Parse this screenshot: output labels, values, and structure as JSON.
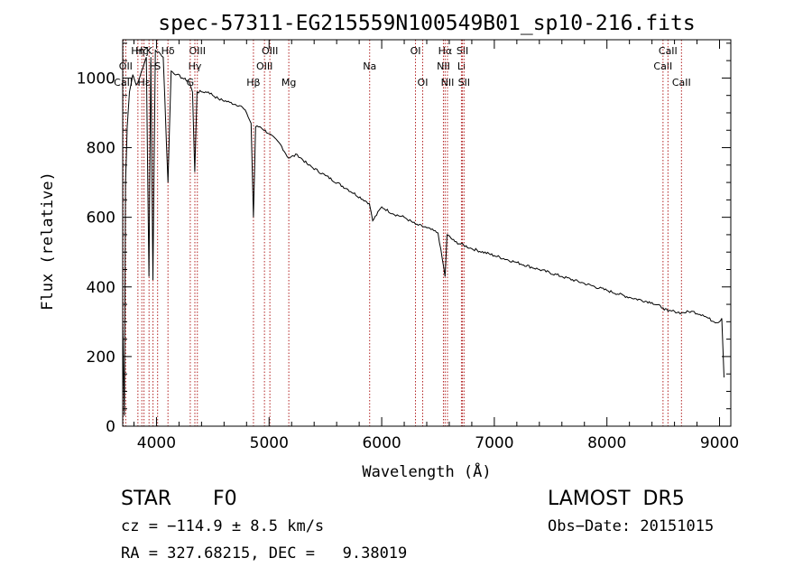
{
  "chart_data": {
    "type": "line",
    "title": "spec-57311-EG215559N100549B01_sp10-216.fits",
    "xlabel": "Wavelength (Å)",
    "ylabel": "Flux (relative)",
    "xlim": [
      3700,
      9100
    ],
    "ylim": [
      0,
      1110
    ],
    "xticks": [
      4000,
      5000,
      6000,
      7000,
      8000,
      9000
    ],
    "yticks": [
      0,
      200,
      400,
      600,
      800,
      1000
    ],
    "grid": false,
    "colors": {
      "spectrum": "#000000",
      "lines": "#b22222",
      "axes": "#000000"
    },
    "series": [
      {
        "x": [
          3700,
          3715,
          3725,
          3740,
          3760,
          3790,
          3820,
          3850,
          3880,
          3910,
          3933,
          3950,
          3968,
          3990,
          4020,
          4060,
          4102,
          4130,
          4180,
          4230,
          4290,
          4320,
          4340,
          4360,
          4400,
          4460,
          4550,
          4650,
          4750,
          4800,
          4840,
          4861,
          4880,
          4920,
          5000,
          5100,
          5172,
          5250,
          5350,
          5500,
          5700,
          5890,
          5920,
          6000,
          6100,
          6200,
          6300,
          6400,
          6500,
          6563,
          6580,
          6650,
          6800,
          7000,
          7200,
          7400,
          7600,
          7800,
          8000,
          8200,
          8400,
          8498,
          8542,
          8600,
          8662,
          8750,
          8850,
          8950,
          9000,
          9020,
          9040
        ],
        "values": [
          300,
          30,
          700,
          860,
          960,
          1010,
          980,
          1000,
          1030,
          1060,
          430,
          1060,
          420,
          1080,
          1075,
          1060,
          700,
          1020,
          1010,
          1000,
          990,
          960,
          730,
          960,
          960,
          960,
          940,
          930,
          920,
          900,
          870,
          600,
          860,
          860,
          840,
          810,
          770,
          780,
          750,
          720,
          680,
          640,
          590,
          630,
          610,
          600,
          580,
          570,
          555,
          430,
          550,
          530,
          510,
          490,
          470,
          450,
          430,
          410,
          390,
          370,
          355,
          340,
          330,
          330,
          325,
          330,
          320,
          300,
          300,
          310,
          140
        ]
      }
    ],
    "lines": [
      {
        "label": "Hη",
        "wl": 3835,
        "row": 0
      },
      {
        "label": "OII",
        "wl": 3727,
        "row": 1
      },
      {
        "label": "CaII",
        "wl": 3705,
        "row": 2
      },
      {
        "label": "Hε",
        "wl": 3889,
        "row": 2
      },
      {
        "label": "Hζ",
        "wl": 3870,
        "row": 0
      },
      {
        "label": "K",
        "wl": 3934,
        "row": 0
      },
      {
        "label": "H",
        "wl": 3969,
        "row": 1
      },
      {
        "label": "S",
        "wl": 4010,
        "row": 1
      },
      {
        "label": "Hδ",
        "wl": 4102,
        "row": 0
      },
      {
        "label": "OIII",
        "wl": 4363,
        "row": 0
      },
      {
        "label": "Hγ",
        "wl": 4341,
        "row": 1
      },
      {
        "label": "G",
        "wl": 4300,
        "row": 2
      },
      {
        "label": "Hβ",
        "wl": 4861,
        "row": 2
      },
      {
        "label": "OIII",
        "wl": 4959,
        "row": 1
      },
      {
        "label": "OIII",
        "wl": 5007,
        "row": 0
      },
      {
        "label": "Mg",
        "wl": 5175,
        "row": 2
      },
      {
        "label": "Na",
        "wl": 5893,
        "row": 1
      },
      {
        "label": "OI",
        "wl": 6300,
        "row": 0
      },
      {
        "label": "OI",
        "wl": 6364,
        "row": 2
      },
      {
        "label": "Hα",
        "wl": 6563,
        "row": 0
      },
      {
        "label": "NII",
        "wl": 6548,
        "row": 1
      },
      {
        "label": "NII",
        "wl": 6584,
        "row": 2
      },
      {
        "label": "SII",
        "wl": 6717,
        "row": 0
      },
      {
        "label": "Li",
        "wl": 6708,
        "row": 1
      },
      {
        "label": "SII",
        "wl": 6731,
        "row": 2
      },
      {
        "label": "CaII",
        "wl": 8498,
        "row": 1
      },
      {
        "label": "CaII",
        "wl": 8542,
        "row": 0
      },
      {
        "label": "CaII",
        "wl": 8662,
        "row": 2
      }
    ]
  },
  "info": {
    "class_type": "STAR",
    "subclass": "F0",
    "survey": "LAMOST  DR5",
    "cz": "cz = −114.9 ± 8.5 km/s",
    "obs_date": "Obs−Date: 20151015",
    "coords": "RA = 327.68215, DEC =   9.38019"
  }
}
